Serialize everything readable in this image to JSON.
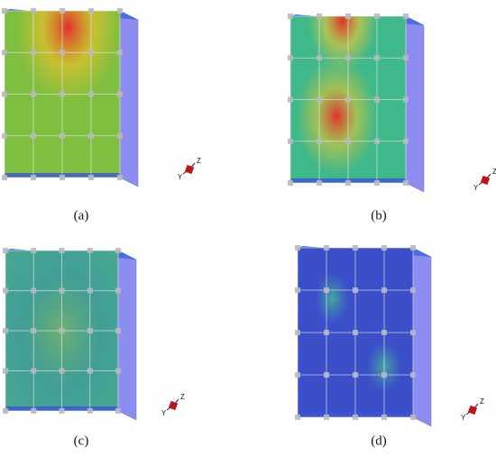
{
  "panels": [
    {
      "caption": "(a)",
      "axes": [
        "Z",
        "Y"
      ]
    },
    {
      "caption": "(b)",
      "axes": [
        "Z",
        "Y"
      ]
    },
    {
      "caption": "(c)",
      "axes": [
        "Z",
        "Y"
      ]
    },
    {
      "caption": "(d)",
      "axes": [
        "Z",
        "Y"
      ]
    }
  ]
}
